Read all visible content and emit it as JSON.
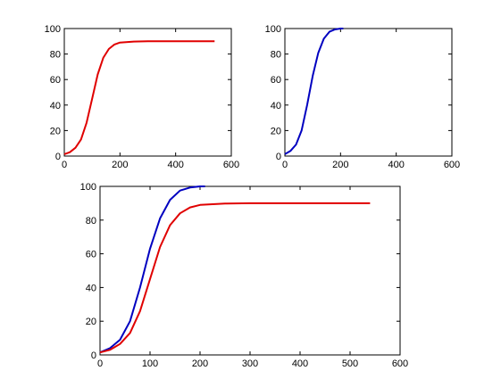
{
  "chart_data": [
    {
      "type": "line",
      "title": "",
      "xlabel": "",
      "ylabel": "",
      "xlim": [
        0,
        600
      ],
      "ylim": [
        0,
        100
      ],
      "xticks": [
        "0",
        "200",
        "400",
        "600"
      ],
      "yticks": [
        "0",
        "20",
        "40",
        "60",
        "80",
        "100"
      ],
      "grid": false,
      "series": [
        {
          "color": "#e00000",
          "x": [
            0,
            20,
            40,
            60,
            80,
            100,
            120,
            140,
            160,
            180,
            200,
            250,
            300,
            400,
            540
          ],
          "y": [
            1.5,
            3,
            6.5,
            13,
            26,
            45,
            64,
            77,
            84,
            87.5,
            89,
            89.8,
            90,
            90,
            90
          ]
        }
      ]
    },
    {
      "type": "line",
      "title": "",
      "xlabel": "",
      "ylabel": "",
      "xlim": [
        0,
        600
      ],
      "ylim": [
        0,
        100
      ],
      "xticks": [
        "0",
        "200",
        "400",
        "600"
      ],
      "yticks": [
        "0",
        "20",
        "40",
        "60",
        "80",
        "100"
      ],
      "grid": false,
      "series": [
        {
          "color": "#0000c0",
          "x": [
            0,
            20,
            40,
            60,
            80,
            100,
            120,
            140,
            160,
            180,
            200,
            210
          ],
          "y": [
            1.5,
            4,
            9,
            20,
            40,
            63,
            81,
            92,
            97.5,
            99.3,
            100,
            100
          ]
        }
      ]
    },
    {
      "type": "line",
      "title": "",
      "xlabel": "",
      "ylabel": "",
      "xlim": [
        0,
        600
      ],
      "ylim": [
        0,
        100
      ],
      "xticks": [
        "0",
        "100",
        "200",
        "300",
        "400",
        "500",
        "600"
      ],
      "yticks": [
        "0",
        "20",
        "40",
        "60",
        "80",
        "100"
      ],
      "grid": false,
      "series": [
        {
          "color": "#0000c0",
          "x": [
            0,
            20,
            40,
            60,
            80,
            100,
            120,
            140,
            160,
            180,
            200,
            210
          ],
          "y": [
            1.5,
            4,
            9,
            20,
            40,
            63,
            81,
            92,
            97.5,
            99.3,
            100,
            100
          ]
        },
        {
          "color": "#e00000",
          "x": [
            0,
            20,
            40,
            60,
            80,
            100,
            120,
            140,
            160,
            180,
            200,
            250,
            300,
            400,
            540
          ],
          "y": [
            1.5,
            3,
            6.5,
            13,
            26,
            45,
            64,
            77,
            84,
            87.5,
            89,
            89.8,
            90,
            90,
            90
          ]
        }
      ]
    }
  ]
}
